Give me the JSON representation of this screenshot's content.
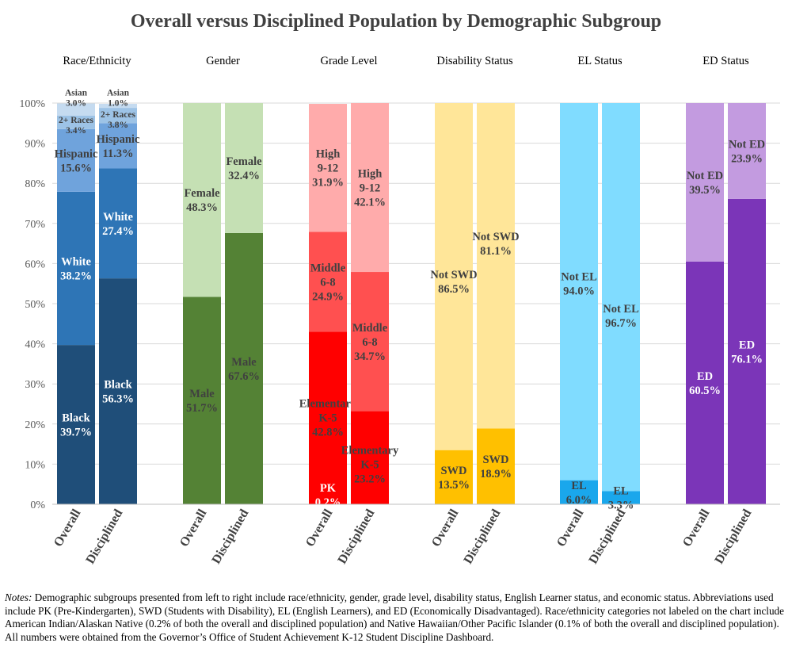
{
  "title": "Overall versus Disciplined Population by Demographic Subgroup",
  "notes": {
    "label": "Notes:",
    "text": "Demographic subgroups presented from left to right include race/ethnicity, gender, grade level, disability status, English Learner status, and economic status. Abbreviations used include PK (Pre-Kindergarten), SWD (Students with Disability), EL (English Learners), and ED (Economically Disadvantaged). Race/ethnicity categories not labeled on the chart include American Indian/Alaskan Native (0.2% of both the overall and disciplined population) and Native Hawaiian/Other Pacific Islander (0.1% of both the overall and disciplined population). All numbers were obtained from the Governor’s Office of Student Achievement K-12 Student Discipline Dashboard."
  },
  "chart_data": {
    "type": "bar",
    "stacked": true,
    "title": "Overall versus Disciplined Population by Demographic Subgroup",
    "ylim": [
      0,
      100
    ],
    "yticks": [
      "0%",
      "10%",
      "20%",
      "30%",
      "40%",
      "50%",
      "60%",
      "70%",
      "80%",
      "90%",
      "100%"
    ],
    "grid": true,
    "legend": "none",
    "categories": [
      "Overall",
      "Disciplined"
    ],
    "groups": [
      {
        "name": "Race/Ethnicity",
        "segments": [
          {
            "label": "Black",
            "values": [
              39.7,
              56.3
            ],
            "color": "#1f4e79"
          },
          {
            "label": "White",
            "values": [
              38.2,
              27.4
            ],
            "color": "#2e75b6"
          },
          {
            "label": "Hispanic",
            "values": [
              15.6,
              11.3
            ],
            "color": "#6fa3dc"
          },
          {
            "label": "2+ Races",
            "values": [
              3.4,
              3.8
            ],
            "color": "#9dc3e6"
          },
          {
            "label": "Asian",
            "values": [
              3.0,
              1.0
            ],
            "color": "#c5dbf0"
          }
        ]
      },
      {
        "name": "Gender",
        "segments": [
          {
            "label": "Male",
            "values": [
              51.7,
              67.6
            ],
            "color": "#548235"
          },
          {
            "label": "Female",
            "values": [
              48.3,
              32.4
            ],
            "color": "#c5e0b4"
          }
        ]
      },
      {
        "name": "Grade Level",
        "segments": [
          {
            "label": "PK",
            "values": [
              0.2,
              0
            ],
            "color": "#ff0000"
          },
          {
            "label": "Elementary K-5",
            "values": [
              42.8,
              23.2
            ],
            "color": "#ff0000"
          },
          {
            "label": "Middle 6-8",
            "values": [
              24.9,
              34.7
            ],
            "color": "#ff5050"
          },
          {
            "label": "High 9-12",
            "values": [
              31.9,
              42.1
            ],
            "color": "#ffabab"
          }
        ]
      },
      {
        "name": "Disability Status",
        "segments": [
          {
            "label": "SWD",
            "values": [
              13.5,
              18.9
            ],
            "color": "#ffc000"
          },
          {
            "label": "Not SWD",
            "values": [
              86.5,
              81.1
            ],
            "color": "#ffe699"
          }
        ]
      },
      {
        "name": "EL Status",
        "segments": [
          {
            "label": "EL",
            "values": [
              6.0,
              3.3
            ],
            "color": "#1aa7ec"
          },
          {
            "label": "Not EL",
            "values": [
              94.0,
              96.7
            ],
            "color": "#80dcff"
          }
        ]
      },
      {
        "name": "ED Status",
        "segments": [
          {
            "label": "ED",
            "values": [
              60.5,
              76.1
            ],
            "color": "#7b35b8"
          },
          {
            "label": "Not ED",
            "values": [
              39.5,
              23.9
            ],
            "color": "#c39be0"
          }
        ]
      }
    ]
  }
}
